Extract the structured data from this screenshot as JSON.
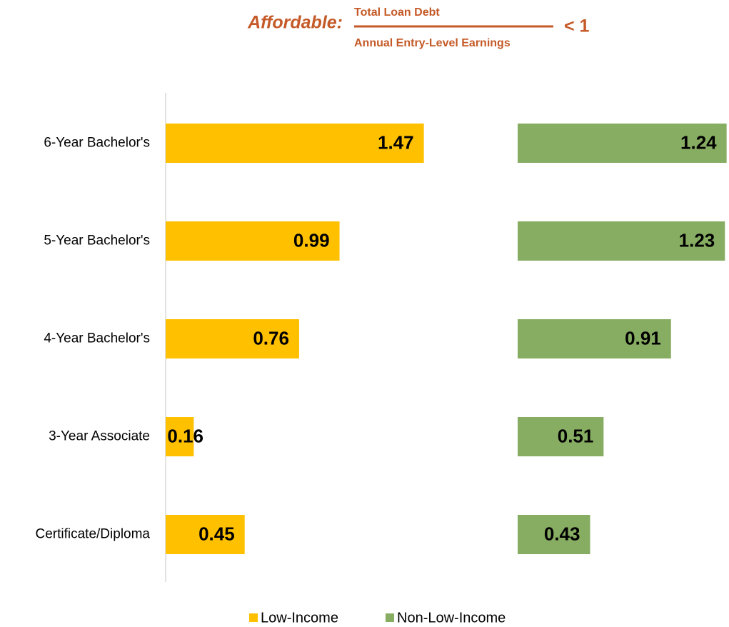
{
  "chart_data": {
    "type": "bar",
    "orientation": "horizontal",
    "title": "Affordable:",
    "numerator": "Total Loan Debt",
    "denominator": "Annual Entry-Level Earnings",
    "threshold": "< 1",
    "categories": [
      "6-Year Bachelor's",
      "5-Year Bachelor's",
      "4-Year Bachelor's",
      "3-Year Associate",
      "Certificate/Diploma"
    ],
    "series": [
      {
        "name": "Low-Income",
        "color": "#ffc000",
        "values": [
          1.47,
          0.99,
          0.76,
          0.16,
          0.45
        ]
      },
      {
        "name": "Non-Low-Income",
        "color": "#87ad62",
        "values": [
          1.24,
          1.23,
          0.91,
          0.51,
          0.43
        ]
      }
    ],
    "legend": "bottom"
  }
}
